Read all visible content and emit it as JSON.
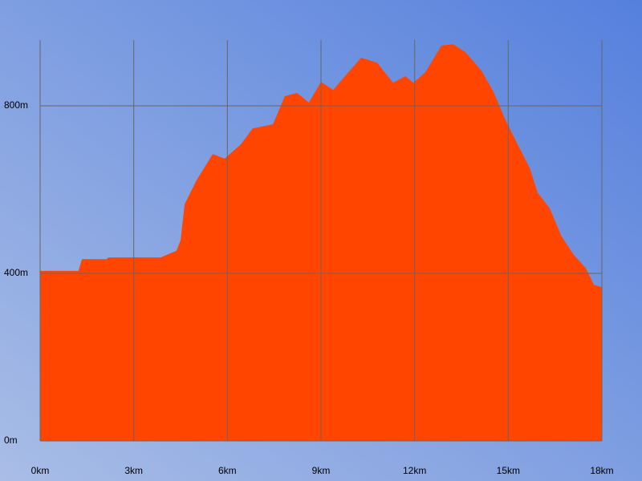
{
  "chart_data": {
    "type": "area",
    "x": [
      0,
      1.23,
      1.34,
      2.13,
      2.19,
      3.86,
      4.37,
      4.5,
      4.63,
      5.01,
      5.53,
      5.91,
      6.43,
      6.81,
      7.46,
      7.84,
      8.23,
      8.61,
      9.0,
      9.39,
      9.77,
      10.29,
      10.8,
      11.31,
      11.7,
      11.96,
      12.34,
      12.86,
      13.24,
      13.63,
      14.14,
      14.53,
      14.91,
      15.3,
      15.69,
      15.94,
      16.33,
      16.71,
      17.1,
      17.49,
      17.74,
      18.0
    ],
    "values": [
      406,
      406,
      434,
      434,
      438,
      438,
      454,
      479,
      565,
      622,
      685,
      674,
      708,
      746,
      756,
      823,
      831,
      808,
      857,
      838,
      871,
      915,
      903,
      855,
      871,
      855,
      880,
      944,
      947,
      928,
      884,
      833,
      766,
      708,
      651,
      593,
      555,
      488,
      444,
      412,
      373,
      367
    ],
    "color": "#ff4500",
    "xlim": [
      0,
      18
    ],
    "ylim": [
      0,
      957
    ],
    "xticks": [
      {
        "value": 0,
        "label": "0km"
      },
      {
        "value": 3,
        "label": "3km"
      },
      {
        "value": 6,
        "label": "6km"
      },
      {
        "value": 9,
        "label": "9km"
      },
      {
        "value": 12,
        "label": "12km"
      },
      {
        "value": 15,
        "label": "15km"
      },
      {
        "value": 18,
        "label": "18km"
      }
    ],
    "yticks": [
      {
        "value": 0,
        "label": "0m"
      },
      {
        "value": 400,
        "label": "400m"
      },
      {
        "value": 800,
        "label": "800m"
      }
    ],
    "grid": true
  }
}
